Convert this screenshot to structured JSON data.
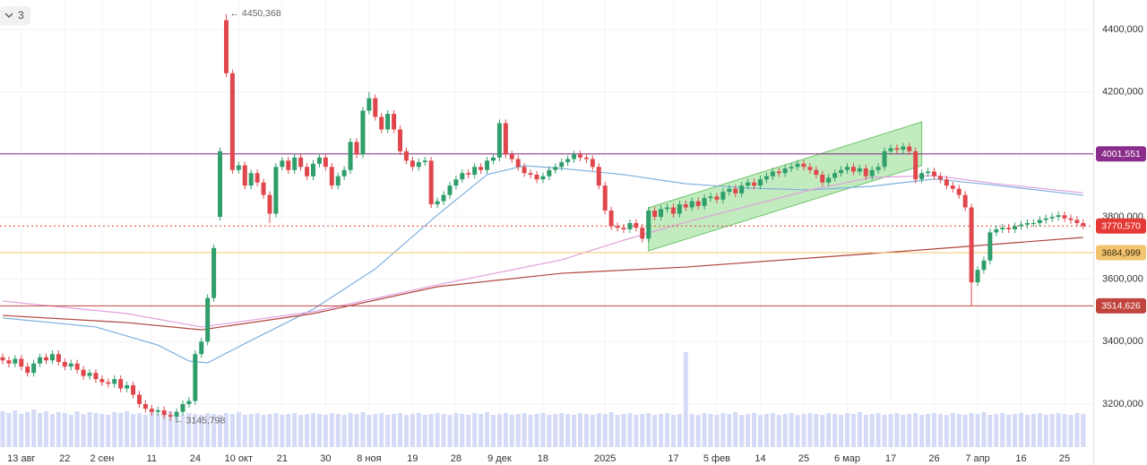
{
  "toolbar": {
    "indicator_count": "3"
  },
  "chart_data": {
    "type": "candlestick",
    "categories": [
      null,
      null,
      null,
      "13 авг",
      null,
      null,
      null,
      null,
      null,
      null,
      "22",
      null,
      null,
      null,
      null,
      null,
      "2 сен",
      null,
      null,
      null,
      null,
      null,
      null,
      null,
      "11",
      null,
      null,
      null,
      null,
      null,
      null,
      "24",
      null,
      null,
      null,
      null,
      null,
      null,
      "10 окт",
      null,
      null,
      null,
      null,
      null,
      null,
      "21",
      null,
      null,
      null,
      null,
      null,
      null,
      "30",
      null,
      null,
      null,
      null,
      null,
      null,
      "8 ноя",
      null,
      null,
      null,
      null,
      null,
      null,
      "19",
      null,
      null,
      null,
      null,
      null,
      null,
      "28",
      null,
      null,
      null,
      null,
      null,
      null,
      "9 дек",
      null,
      null,
      null,
      null,
      null,
      null,
      "18",
      null,
      null,
      null,
      null,
      null,
      null,
      null,
      null,
      null,
      "2025",
      null,
      null,
      null,
      null,
      null,
      null,
      null,
      null,
      null,
      null,
      "17",
      null,
      null,
      null,
      null,
      null,
      null,
      "5 фев",
      null,
      null,
      null,
      null,
      null,
      null,
      "14",
      null,
      null,
      null,
      null,
      null,
      null,
      "25",
      null,
      null,
      null,
      null,
      null,
      null,
      "6 мар",
      null,
      null,
      null,
      null,
      null,
      null,
      "17",
      null,
      null,
      null,
      null,
      null,
      null,
      "26",
      null,
      null,
      null,
      null,
      null,
      null,
      "7 апр",
      null,
      null,
      null,
      null,
      null,
      null,
      "16",
      null,
      null,
      null,
      null,
      null,
      null,
      "25",
      null,
      null,
      null
    ],
    "open": [
      3350,
      3340,
      3330,
      3345,
      3320,
      3300,
      3330,
      3350,
      3340,
      3360,
      3335,
      3320,
      3330,
      3310,
      3290,
      3300,
      3280,
      3270,
      3265,
      3280,
      3250,
      3260,
      3230,
      3200,
      3185,
      3175,
      3180,
      3165,
      3160,
      3175,
      3200,
      3210,
      3360,
      3400,
      3540,
      3800,
      4430,
      4260,
      3950,
      3965,
      3900,
      3940,
      3910,
      3870,
      3810,
      3960,
      3980,
      3950,
      3990,
      3960,
      3930,
      3970,
      3990,
      3960,
      3900,
      3930,
      3950,
      4040,
      4000,
      4140,
      4180,
      4120,
      4080,
      4130,
      4080,
      4010,
      3980,
      3960,
      3975,
      3980,
      3840,
      3850,
      3870,
      3900,
      3920,
      3940,
      3935,
      3960,
      3950,
      3980,
      3990,
      4100,
      4000,
      3985,
      3960,
      3940,
      3935,
      3920,
      3930,
      3950,
      3960,
      3975,
      3985,
      4000,
      3990,
      3985,
      3960,
      3900,
      3820,
      3770,
      3765,
      3760,
      3780,
      3765,
      3730,
      3820,
      3800,
      3825,
      3830,
      3810,
      3840,
      3830,
      3850,
      3835,
      3860,
      3865,
      3855,
      3880,
      3890,
      3875,
      3900,
      3910,
      3900,
      3920,
      3930,
      3945,
      3940,
      3955,
      3960,
      3970,
      3960,
      3950,
      3935,
      3910,
      3925,
      3940,
      3950,
      3960,
      3945,
      3955,
      3930,
      3950,
      3960,
      4010,
      4020,
      4015,
      4025,
      4010,
      3920,
      3940,
      3945,
      3930,
      3920,
      3900,
      3890,
      3870,
      3830,
      3590,
      3630,
      3660,
      3750,
      3760,
      3765,
      3760,
      3770,
      3775,
      3780,
      3780,
      3790,
      3795,
      3800,
      3805,
      3795,
      3790,
      3780
    ],
    "high": [
      3362,
      3352,
      3357,
      3357,
      3332,
      3342,
      3362,
      3362,
      3372,
      3372,
      3347,
      3342,
      3342,
      3322,
      3312,
      3312,
      3292,
      3282,
      3292,
      3292,
      3272,
      3272,
      3242,
      3212,
      3197,
      3192,
      3192,
      3177,
      3187,
      3212,
      3222,
      3372,
      3412,
      3552,
      3712,
      4022,
      4450.368,
      4272,
      3977,
      3977,
      3952,
      3952,
      3922,
      3882,
      3972,
      3992,
      3992,
      4002,
      4002,
      3972,
      3982,
      4002,
      4002,
      3972,
      3942,
      3962,
      4052,
      4052,
      4152,
      4200,
      4192,
      4132,
      4142,
      4142,
      4092,
      4022,
      3992,
      3987,
      3992,
      3992,
      3862,
      3882,
      3912,
      3932,
      3952,
      3952,
      3972,
      3972,
      3992,
      4002,
      4112,
      4112,
      4012,
      3997,
      3972,
      3952,
      3947,
      3942,
      3962,
      3972,
      3987,
      3997,
      4012,
      4012,
      4002,
      3997,
      3972,
      3912,
      3832,
      3782,
      3777,
      3792,
      3792,
      3777,
      3832,
      3832,
      3837,
      3842,
      3842,
      3852,
      3852,
      3862,
      3862,
      3872,
      3877,
      3877,
      3892,
      3902,
      3902,
      3912,
      3922,
      3922,
      3932,
      3942,
      3957,
      3957,
      3967,
      3972,
      3982,
      3982,
      3972,
      3962,
      3947,
      3937,
      3952,
      3962,
      3972,
      3972,
      3967,
      3967,
      3962,
      3972,
      4022,
      4032,
      4032,
      4037,
      4037,
      4022,
      3952,
      3957,
      3957,
      3942,
      3932,
      3912,
      3902,
      3882,
      3842,
      3642,
      3672,
      3762,
      3772,
      3777,
      3777,
      3782,
      3787,
      3792,
      3792,
      3802,
      3807,
      3812,
      3817,
      3817,
      3807,
      3802,
      3792
    ],
    "low": [
      3328,
      3318,
      3318,
      3308,
      3288,
      3288,
      3318,
      3328,
      3328,
      3323,
      3308,
      3308,
      3298,
      3278,
      3278,
      3268,
      3258,
      3253,
      3253,
      3238,
      3238,
      3218,
      3188,
      3173,
      3163,
      3163,
      3153,
      3145.798,
      3148,
      3163,
      3188,
      3198,
      3348,
      3388,
      3528,
      3788,
      4248,
      3938,
      3938,
      3888,
      3888,
      3898,
      3858,
      3780,
      3798,
      3948,
      3938,
      3938,
      3948,
      3918,
      3918,
      3958,
      3948,
      3888,
      3888,
      3918,
      3938,
      3988,
      3988,
      4128,
      4108,
      4068,
      4068,
      4068,
      3998,
      3968,
      3948,
      3948,
      3963,
      3828,
      3828,
      3838,
      3858,
      3888,
      3908,
      3923,
      3923,
      3938,
      3938,
      3968,
      3978,
      3988,
      3973,
      3948,
      3928,
      3923,
      3908,
      3908,
      3918,
      3938,
      3948,
      3963,
      3973,
      3978,
      3973,
      3948,
      3888,
      3808,
      3758,
      3753,
      3748,
      3748,
      3753,
      3718,
      3718,
      3788,
      3788,
      3813,
      3798,
      3798,
      3818,
      3818,
      3823,
      3823,
      3848,
      3843,
      3843,
      3868,
      3863,
      3863,
      3888,
      3888,
      3888,
      3908,
      3918,
      3928,
      3928,
      3943,
      3948,
      3948,
      3938,
      3923,
      3898,
      3898,
      3913,
      3928,
      3938,
      3933,
      3933,
      3918,
      3918,
      3938,
      3948,
      3998,
      4003,
      4003,
      3998,
      3908,
      3908,
      3928,
      3918,
      3908,
      3888,
      3878,
      3858,
      3818,
      3514.626,
      3578,
      3618,
      3648,
      3738,
      3748,
      3748,
      3748,
      3758,
      3763,
      3768,
      3768,
      3778,
      3783,
      3788,
      3783,
      3778,
      3768,
      3760
    ],
    "close": [
      3340,
      3330,
      3345,
      3320,
      3300,
      3330,
      3350,
      3340,
      3360,
      3335,
      3320,
      3330,
      3310,
      3290,
      3300,
      3280,
      3270,
      3265,
      3280,
      3250,
      3260,
      3230,
      3200,
      3185,
      3175,
      3180,
      3165,
      3160,
      3175,
      3200,
      3210,
      3360,
      3400,
      3540,
      3700,
      4010,
      4260,
      3950,
      3965,
      3900,
      3940,
      3910,
      3870,
      3810,
      3960,
      3980,
      3950,
      3990,
      3960,
      3930,
      3970,
      3990,
      3960,
      3900,
      3930,
      3950,
      4040,
      4000,
      4140,
      4180,
      4120,
      4080,
      4130,
      4080,
      4010,
      3980,
      3960,
      3975,
      3980,
      3840,
      3850,
      3870,
      3900,
      3920,
      3940,
      3935,
      3960,
      3950,
      3980,
      3990,
      4100,
      4000,
      3985,
      3960,
      3940,
      3935,
      3920,
      3930,
      3950,
      3960,
      3975,
      3985,
      4000,
      3990,
      3985,
      3960,
      3900,
      3820,
      3770,
      3765,
      3760,
      3780,
      3765,
      3730,
      3820,
      3800,
      3825,
      3830,
      3810,
      3840,
      3830,
      3850,
      3835,
      3860,
      3865,
      3855,
      3880,
      3890,
      3875,
      3900,
      3910,
      3900,
      3920,
      3930,
      3945,
      3940,
      3955,
      3960,
      3970,
      3960,
      3950,
      3935,
      3910,
      3925,
      3940,
      3950,
      3960,
      3945,
      3955,
      3930,
      3950,
      3960,
      4010,
      4020,
      4015,
      4025,
      4010,
      3920,
      3940,
      3945,
      3930,
      3920,
      3900,
      3890,
      3870,
      3830,
      3590,
      3630,
      3660,
      3750,
      3760,
      3765,
      3760,
      3770,
      3775,
      3780,
      3780,
      3790,
      3795,
      3800,
      3805,
      3795,
      3790,
      3780,
      3770.57
    ],
    "up_color": "#2f9e6b",
    "down_color": "#e0474c",
    "volume": [
      40,
      38,
      41,
      37,
      39,
      42,
      38,
      40,
      37,
      39,
      38,
      36,
      40,
      37,
      39,
      38,
      37,
      36,
      39,
      38,
      40,
      37,
      38,
      36,
      39,
      37,
      38,
      40,
      37,
      36,
      38,
      37,
      36,
      38,
      37,
      36,
      38,
      37,
      39,
      36,
      37,
      38,
      36,
      37,
      38,
      36,
      37,
      38,
      36,
      37,
      38,
      37,
      36,
      38,
      37,
      36,
      38,
      37,
      39,
      36,
      37,
      38,
      36,
      37,
      38,
      36,
      37,
      38,
      36,
      37,
      38,
      37,
      36,
      38,
      37,
      36,
      38,
      37,
      39,
      36,
      37,
      38,
      36,
      37,
      38,
      36,
      37,
      38,
      36,
      37,
      38,
      37,
      36,
      38,
      37,
      36,
      38,
      37,
      39,
      36,
      37,
      38,
      36,
      37,
      38,
      36,
      37,
      38,
      36,
      37,
      106,
      37,
      36,
      38,
      37,
      36,
      38,
      37,
      39,
      36,
      37,
      38,
      36,
      37,
      38,
      36,
      37,
      38,
      36,
      37,
      38,
      37,
      36,
      38,
      37,
      36,
      38,
      37,
      39,
      36,
      37,
      38,
      36,
      37,
      38,
      36,
      37,
      38,
      36,
      37,
      38,
      37,
      36,
      38,
      37,
      36,
      38,
      37,
      39,
      36,
      37,
      38,
      36,
      37,
      38,
      36,
      37,
      38,
      36,
      37,
      38,
      37,
      36,
      38,
      37
    ],
    "volume_color": "#d5dbf6",
    "volume_ylim": [
      0,
      120
    ],
    "ylim": [
      3059.3,
      4494.7
    ],
    "yticks": [
      {
        "value": 3200,
        "label": "3200,000"
      },
      {
        "value": 3400,
        "label": "3400,000"
      },
      {
        "value": 3600,
        "label": "3600,000"
      },
      {
        "value": 3800,
        "label": "3800,000"
      },
      {
        "value": 4000,
        "label": "4000,000"
      },
      {
        "value": 4200,
        "label": "4200,000"
      },
      {
        "value": 4400,
        "label": "4400,000"
      }
    ],
    "grid": true,
    "moving_averages": [
      {
        "color": "#7fb0e0",
        "x": [
          0,
          15,
          25,
          30,
          33,
          40,
          50,
          60,
          70,
          78,
          84,
          90,
          100,
          110,
          120,
          130,
          140,
          150,
          160,
          174
        ],
        "values": [
          3476,
          3447,
          3389,
          3338,
          3332,
          3404,
          3504,
          3633,
          3806,
          3935,
          3964,
          3955,
          3935,
          3906,
          3892,
          3886,
          3898,
          3921,
          3901,
          3869
        ]
      },
      {
        "color": "#e0a0dc",
        "x": [
          0,
          20,
          32,
          50,
          70,
          90,
          100,
          110,
          120,
          130,
          140,
          150,
          160,
          174
        ],
        "values": [
          3530,
          3490,
          3447,
          3496,
          3582,
          3662,
          3725,
          3783,
          3834,
          3886,
          3926,
          3932,
          3906,
          3877
        ]
      },
      {
        "color": "#b0443c",
        "x": [
          0,
          20,
          32,
          50,
          70,
          90,
          110,
          130,
          150,
          174
        ],
        "values": [
          3484,
          3461,
          3438,
          3490,
          3576,
          3619,
          3639,
          3668,
          3697,
          3734
        ]
      }
    ],
    "channel": {
      "x": [
        104,
        148
      ],
      "upper": [
        3829,
        4104
      ],
      "lower": [
        3691,
        3964
      ],
      "color": "#8fdc8a"
    },
    "levels": [
      {
        "value": 4001.551,
        "label": "4001,551",
        "color": "#8a2c8c",
        "text_color": "#ffffff",
        "dashed": false
      },
      {
        "value": 3770.57,
        "label": "3770,570",
        "color": "#e53935",
        "text_color": "#ffffff",
        "dashed": true
      },
      {
        "value": 3684.999,
        "label": "3684,999",
        "color": "#f2c46e",
        "text_color": "#3a2a10",
        "dashed": false
      },
      {
        "value": 3514.626,
        "label": "3514,626",
        "color": "#c0443c",
        "text_color": "#ffffff",
        "dashed": false
      }
    ],
    "annotations": [
      {
        "index": 36,
        "value": 4450.368,
        "label": "← 4450,368"
      },
      {
        "index": 27,
        "value": 3145.798,
        "label": "← 3145,798"
      }
    ]
  }
}
